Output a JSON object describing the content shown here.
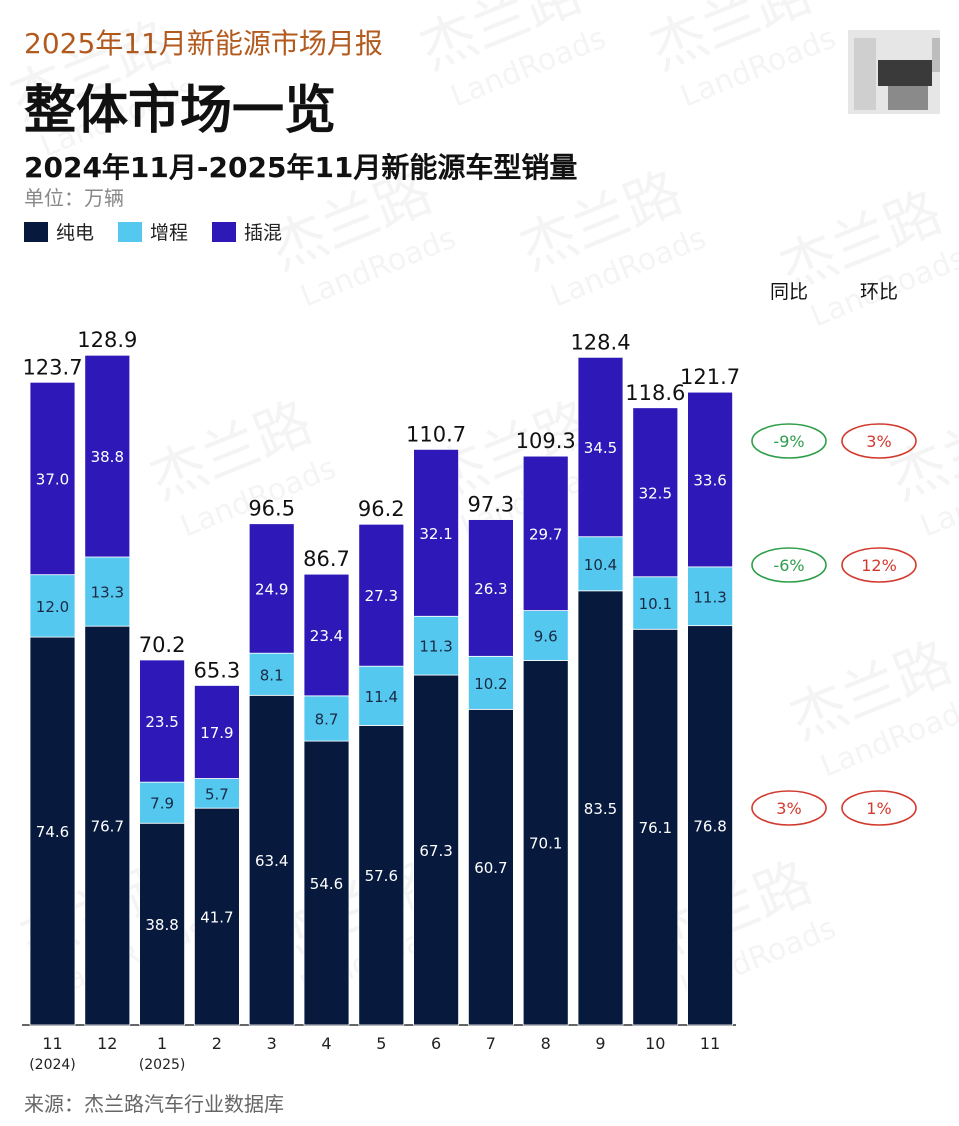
{
  "header": {
    "report_tag": "2025年11月新能源市场月报",
    "main_title": "整体市场一览"
  },
  "chart_data": {
    "type": "bar",
    "stacked": true,
    "title": "2024年11月-2025年11月新能源车型销量",
    "unit": "单位：万辆",
    "categories": [
      "11",
      "12",
      "1",
      "2",
      "3",
      "4",
      "5",
      "6",
      "7",
      "8",
      "9",
      "10",
      "11"
    ],
    "category_sublabels": [
      "(2024)",
      "",
      "(2025)",
      "",
      "",
      "",
      "",
      "",
      "",
      "",
      "",
      "",
      ""
    ],
    "series": [
      {
        "name": "纯电",
        "color": "#071a3e",
        "values": [
          74.6,
          76.7,
          38.8,
          41.7,
          63.4,
          54.6,
          57.6,
          67.3,
          60.7,
          70.1,
          83.5,
          76.1,
          76.8
        ]
      },
      {
        "name": "增程",
        "color": "#55c8f0",
        "values": [
          12.0,
          13.3,
          7.9,
          5.7,
          8.1,
          8.7,
          11.4,
          11.3,
          10.2,
          9.6,
          10.4,
          10.1,
          11.3
        ]
      },
      {
        "name": "插混",
        "color": "#2e19b8",
        "values": [
          37.0,
          38.8,
          23.5,
          17.9,
          24.9,
          23.4,
          27.3,
          32.1,
          26.3,
          29.7,
          34.5,
          32.5,
          33.6
        ]
      }
    ],
    "totals": [
      "123.7",
      "128.9",
      "70.2",
      "65.3",
      "96.5",
      "86.7",
      "96.2",
      "110.7",
      "97.3",
      "109.3",
      "128.4",
      "118.6",
      "121.7"
    ],
    "ylim": [
      0,
      140
    ],
    "legend_position": "top-left",
    "grid": false,
    "growth": {
      "yoy_label": "同比",
      "mom_label": "环比",
      "rows": [
        {
          "series": "插混",
          "yoy": "-9%",
          "mom": "3%",
          "yoy_color": "#2e9e4a",
          "mom_color": "#d23a2e"
        },
        {
          "series": "增程",
          "yoy": "-6%",
          "mom": "12%",
          "yoy_color": "#2e9e4a",
          "mom_color": "#d23a2e"
        },
        {
          "series": "纯电",
          "yoy": "3%",
          "mom": "1%",
          "yoy_color": "#d23a2e",
          "mom_color": "#d23a2e"
        }
      ]
    }
  },
  "footer": {
    "source": "来源：杰兰路汽车行业数据库"
  },
  "watermark": {
    "cn": "杰兰路",
    "en": "LandRoads"
  }
}
